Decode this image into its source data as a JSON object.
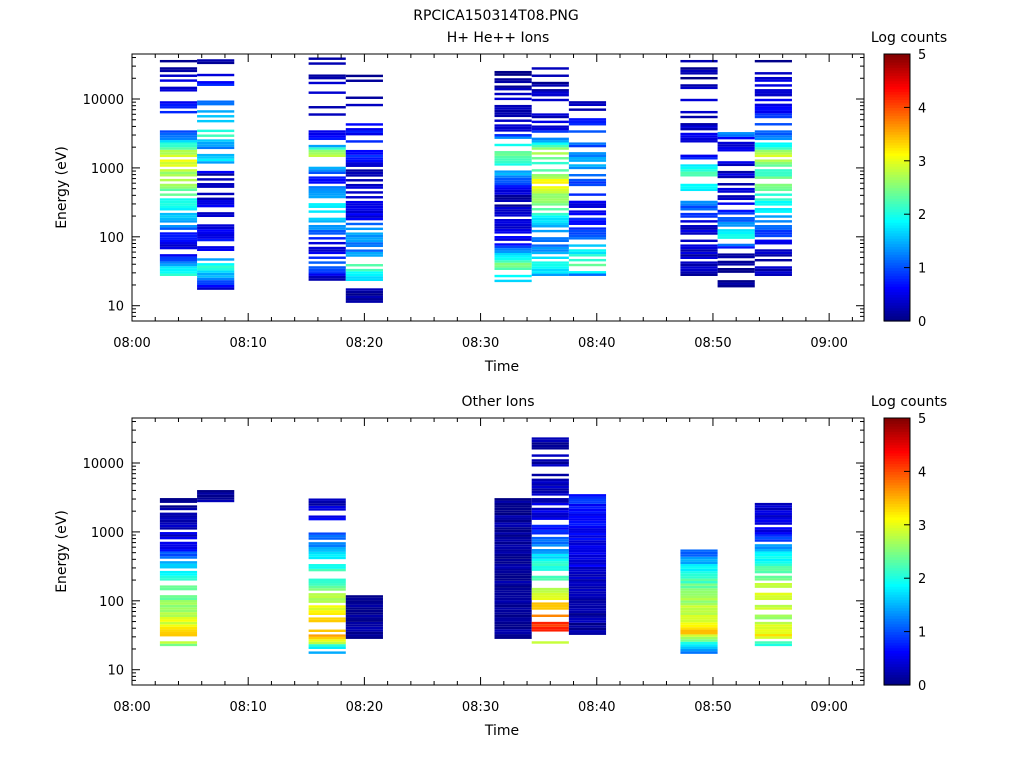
{
  "figure_title": "RPCICA150314T08.PNG",
  "colors": {
    "background": "#ffffff",
    "axis": "#000000",
    "empty_bin": "#ffffff",
    "colormap": "jet"
  },
  "chart_data": [
    {
      "type": "heatmap",
      "title": "H+ He++ Ions",
      "xlabel": "Time",
      "ylabel": "Energy (eV)",
      "x_ticks": [
        "08:00",
        "08:10",
        "08:20",
        "08:30",
        "08:40",
        "08:50",
        "09:00"
      ],
      "x_range_minutes": [
        0,
        63
      ],
      "y_scale": "log",
      "y_ticks": [
        "10",
        "100",
        "1000",
        "10000"
      ],
      "y_range": [
        6,
        45000
      ],
      "colorbar": {
        "label": "Log counts",
        "range": [
          0,
          5
        ],
        "ticks": [
          "0",
          "1",
          "2",
          "3",
          "4",
          "5"
        ]
      },
      "columns": [
        {
          "t_start": 2.4,
          "t_end": 5.6,
          "e_min": 27,
          "e_max": 40000,
          "profile": [
            [
              27,
              2.2
            ],
            [
              40,
              1.4
            ],
            [
              60,
              0.4
            ],
            [
              100,
              0.6
            ],
            [
              160,
              1.4
            ],
            [
              300,
              2.0
            ],
            [
              600,
              2.6
            ],
            [
              1000,
              2.8
            ],
            [
              1500,
              3.0
            ],
            [
              2200,
              2.0
            ],
            [
              3000,
              1.0
            ],
            [
              40000,
              0.1
            ]
          ],
          "gaps": [
            0.55,
            0.25
          ]
        },
        {
          "t_start": 5.6,
          "t_end": 8.8,
          "e_min": 17,
          "e_max": 40000,
          "profile": [
            [
              17,
              0.3
            ],
            [
              35,
              2.1
            ],
            [
              60,
              0.6
            ],
            [
              200,
              0.5
            ],
            [
              800,
              0.3
            ],
            [
              1300,
              1.7
            ],
            [
              2000,
              1.2
            ],
            [
              3000,
              2.1
            ],
            [
              40000,
              0.1
            ]
          ],
          "gaps": [
            0.75,
            0.35
          ]
        },
        {
          "t_start": 15.2,
          "t_end": 18.4,
          "e_min": 23,
          "e_max": 40000,
          "profile": [
            [
              23,
              0.2
            ],
            [
              40,
              1.2
            ],
            [
              70,
              0.3
            ],
            [
              150,
              1.5
            ],
            [
              300,
              2.0
            ],
            [
              700,
              0.6
            ],
            [
              1200,
              2.2
            ],
            [
              1600,
              2.9
            ],
            [
              2500,
              0.6
            ],
            [
              40000,
              0.1
            ]
          ],
          "gaps": [
            0.55,
            0.3
          ]
        },
        {
          "t_start": 18.4,
          "t_end": 21.6,
          "e_min": 11,
          "e_max": 23000,
          "profile": [
            [
              11,
              0.2
            ],
            [
              16,
              0.1
            ],
            [
              25,
              1.8
            ],
            [
              40,
              2.3
            ],
            [
              60,
              1.2
            ],
            [
              120,
              1.4
            ],
            [
              200,
              0.5
            ],
            [
              1000,
              0.3
            ],
            [
              1500,
              0.8
            ],
            [
              23000,
              0.1
            ]
          ],
          "gaps": [
            0.8,
            0.4
          ]
        },
        {
          "t_start": 31.2,
          "t_end": 34.4,
          "e_min": 22,
          "e_max": 40000,
          "profile": [
            [
              22,
              1.6
            ],
            [
              40,
              2.4
            ],
            [
              80,
              0.6
            ],
            [
              150,
              0.4
            ],
            [
              400,
              0.2
            ],
            [
              1500,
              2.5
            ],
            [
              2500,
              1.6
            ],
            [
              3500,
              0.4
            ],
            [
              40000,
              0.1
            ]
          ],
          "gaps": [
            0.65,
            0.35
          ]
        },
        {
          "t_start": 34.4,
          "t_end": 37.6,
          "e_min": 27,
          "e_max": 32000,
          "profile": [
            [
              27,
              1.5
            ],
            [
              40,
              2.0
            ],
            [
              70,
              1.2
            ],
            [
              150,
              1.6
            ],
            [
              300,
              2.4
            ],
            [
              600,
              3.1
            ],
            [
              1200,
              2.0
            ],
            [
              1800,
              3.0
            ],
            [
              2500,
              1.5
            ],
            [
              4000,
              0.4
            ],
            [
              32000,
              0.1
            ]
          ],
          "gaps": [
            0.55,
            0.35
          ]
        },
        {
          "t_start": 37.6,
          "t_end": 40.8,
          "e_min": 23,
          "e_max": 9000,
          "profile": [
            [
              23,
              0.2
            ],
            [
              35,
              2.5
            ],
            [
              60,
              1.8
            ],
            [
              120,
              1.0
            ],
            [
              300,
              0.4
            ],
            [
              1200,
              1.6
            ],
            [
              2000,
              1.0
            ],
            [
              3000,
              1.3
            ],
            [
              9000,
              0.1
            ]
          ],
          "gaps": [
            0.7,
            0.35
          ]
        },
        {
          "t_start": 47.2,
          "t_end": 50.4,
          "e_min": 27,
          "e_max": 38000,
          "profile": [
            [
              27,
              0.2
            ],
            [
              50,
              0.3
            ],
            [
              150,
              0.4
            ],
            [
              300,
              1.2
            ],
            [
              600,
              2.0
            ],
            [
              900,
              2.3
            ],
            [
              1500,
              0.5
            ],
            [
              38000,
              0.1
            ]
          ],
          "gaps": [
            0.6,
            0.3
          ]
        },
        {
          "t_start": 50.4,
          "t_end": 53.6,
          "e_min": 17,
          "e_max": 3200,
          "profile": [
            [
              17,
              0.1
            ],
            [
              60,
              0.2
            ],
            [
              100,
              2.0
            ],
            [
              160,
              1.2
            ],
            [
              250,
              0.6
            ],
            [
              400,
              0.3
            ],
            [
              2500,
              0.5
            ],
            [
              3200,
              1.3
            ]
          ],
          "gaps": [
            0.0,
            0.4
          ]
        },
        {
          "t_start": 53.6,
          "t_end": 56.8,
          "e_min": 27,
          "e_max": 35000,
          "profile": [
            [
              27,
              0.3
            ],
            [
              40,
              0.2
            ],
            [
              80,
              0.5
            ],
            [
              200,
              1.6
            ],
            [
              500,
              2.4
            ],
            [
              1000,
              2.2
            ],
            [
              1500,
              3.0
            ],
            [
              2000,
              2.0
            ],
            [
              3000,
              1.0
            ],
            [
              35000,
              0.1
            ]
          ],
          "gaps": [
            0.55,
            0.3
          ]
        }
      ]
    },
    {
      "type": "heatmap",
      "title": "Other Ions",
      "xlabel": "Time",
      "ylabel": "Energy (eV)",
      "x_ticks": [
        "08:00",
        "08:10",
        "08:20",
        "08:30",
        "08:40",
        "08:50",
        "09:00"
      ],
      "x_range_minutes": [
        0,
        63
      ],
      "y_scale": "log",
      "y_ticks": [
        "10",
        "100",
        "1000",
        "10000"
      ],
      "y_range": [
        6,
        45000
      ],
      "colorbar": {
        "label": "Log counts",
        "range": [
          0,
          5
        ],
        "ticks": [
          "0",
          "1",
          "2",
          "3",
          "4",
          "5"
        ]
      },
      "columns": [
        {
          "t_start": 2.4,
          "t_end": 5.6,
          "e_min": 22,
          "e_max": 3000,
          "profile": [
            [
              22,
              2.2
            ],
            [
              30,
              3.6
            ],
            [
              45,
              3.0
            ],
            [
              80,
              2.7
            ],
            [
              150,
              2.3
            ],
            [
              300,
              1.8
            ],
            [
              600,
              0.6
            ],
            [
              1200,
              0.3
            ],
            [
              3000,
              0.1
            ]
          ],
          "gaps": [
            0.2,
            0.25
          ]
        },
        {
          "t_start": 5.6,
          "t_end": 8.8,
          "e_min": 2700,
          "e_max": 3800,
          "profile": [
            [
              2700,
              0.1
            ],
            [
              3800,
              0.1
            ]
          ],
          "gaps": [
            0.0,
            0.0
          ]
        },
        {
          "t_start": 15.2,
          "t_end": 18.4,
          "e_min": 17,
          "e_max": 3000,
          "profile": [
            [
              17,
              1.3
            ],
            [
              22,
              2.1
            ],
            [
              30,
              3.7
            ],
            [
              50,
              3.3
            ],
            [
              100,
              2.8
            ],
            [
              200,
              2.2
            ],
            [
              400,
              1.9
            ],
            [
              700,
              1.2
            ],
            [
              3000,
              0.2
            ]
          ],
          "gaps": [
            0.35,
            0.3
          ]
        },
        {
          "t_start": 18.4,
          "t_end": 21.6,
          "e_min": 28,
          "e_max": 120,
          "profile": [
            [
              28,
              0.1
            ],
            [
              120,
              0.1
            ]
          ],
          "gaps": [
            0.85,
            0.0
          ]
        },
        {
          "t_start": 31.2,
          "t_end": 34.4,
          "e_min": 28,
          "e_max": 3000,
          "profile": [
            [
              28,
              0.1
            ],
            [
              3000,
              0.1
            ]
          ],
          "gaps": [
            0.92,
            0.0
          ]
        },
        {
          "t_start": 34.4,
          "t_end": 37.6,
          "e_min": 22,
          "e_max": 23000,
          "profile": [
            [
              22,
              1.8
            ],
            [
              30,
              4.5
            ],
            [
              50,
              4.0
            ],
            [
              80,
              3.5
            ],
            [
              150,
              2.6
            ],
            [
              300,
              2.1
            ],
            [
              800,
              1.0
            ],
            [
              2000,
              0.4
            ],
            [
              23000,
              0.1
            ]
          ],
          "gaps": [
            0.35,
            0.3
          ]
        },
        {
          "t_start": 37.6,
          "t_end": 40.8,
          "e_min": 32,
          "e_max": 3500,
          "profile": [
            [
              32,
              0.1
            ],
            [
              3500,
              0.8
            ]
          ],
          "gaps": [
            0.93,
            0.0
          ]
        },
        {
          "t_start": 47.2,
          "t_end": 50.4,
          "e_min": 17,
          "e_max": 520,
          "profile": [
            [
              17,
              1.2
            ],
            [
              25,
              2.2
            ],
            [
              35,
              3.4
            ],
            [
              60,
              2.9
            ],
            [
              120,
              2.6
            ],
            [
              250,
              2.0
            ],
            [
              520,
              1.1
            ]
          ],
          "gaps": [
            0.0,
            0.0
          ]
        },
        {
          "t_start": 53.6,
          "t_end": 56.8,
          "e_min": 22,
          "e_max": 2600,
          "profile": [
            [
              22,
              1.8
            ],
            [
              30,
              3.2
            ],
            [
              60,
              2.6
            ],
            [
              120,
              3.1
            ],
            [
              250,
              2.4
            ],
            [
              500,
              1.7
            ],
            [
              1000,
              0.5
            ],
            [
              2600,
              0.3
            ]
          ],
          "gaps": [
            0.3,
            0.3
          ]
        }
      ]
    }
  ]
}
